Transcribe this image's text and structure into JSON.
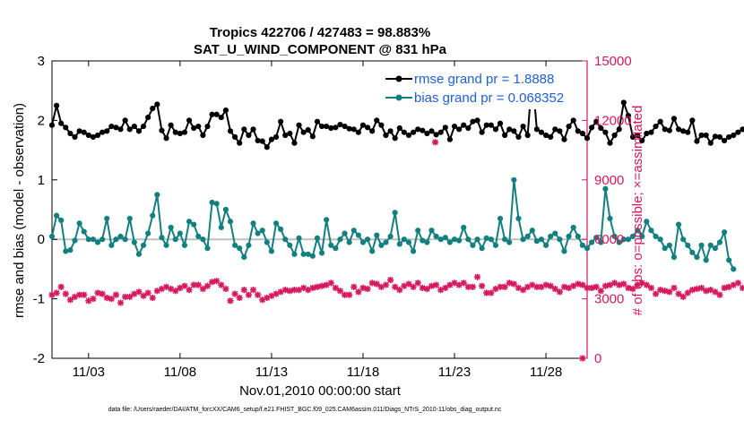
{
  "chart_data": {
    "type": "line",
    "title_line1": "Tropics 422706 / 427483 = 98.883%",
    "title_line2": "SAT_U_WIND_COMPONENT @ 831 hPa",
    "xlabel": "Nov.01,2010 00:00:00 start",
    "ylabel_left": "rmse and bias (model - observation)",
    "ylabel_right": "# of obs: o=possible; ×=assimilated",
    "footer": "data file: /Users/raeder/DAI/ATM_forcXX/CAM6_setup/f.e21.FHIST_BGC.f09_025.CAM6assim.011/Diags_NTrS_2010-11/obs_diag_output.nc",
    "x_tick_labels": [
      "11/03",
      "11/08",
      "11/13",
      "11/18",
      "11/23",
      "11/28"
    ],
    "x_tick_days": [
      3,
      8,
      13,
      18,
      23,
      28
    ],
    "xlim_days": [
      1.0,
      30.25
    ],
    "y_left_ticks": [
      "3",
      "2",
      "1",
      "0",
      "-1",
      "-2"
    ],
    "y_left_tick_values": [
      3,
      2,
      1,
      0,
      -1,
      -2
    ],
    "ylim_left": [
      -2,
      3
    ],
    "y_right_ticks": [
      "15000",
      "12000",
      "9000",
      "6000",
      "3000",
      "0"
    ],
    "y_right_tick_values": [
      15000,
      12000,
      9000,
      6000,
      3000,
      0
    ],
    "ylim_right": [
      0,
      15000
    ],
    "colors": {
      "rmse": "#000000",
      "bias": "#138080",
      "obs": "#d6185e",
      "zero_line": "#bfbfbf",
      "legend_text": "#1f5fd6"
    },
    "legend": [
      {
        "name": "rmse grand pr = 1.8888"
      },
      {
        "name": "bias grand pr = 0.068352"
      }
    ],
    "x_start_day": 1.0,
    "x_step_days": 0.25,
    "series": [
      {
        "name": "rmse",
        "values": [
          1.92,
          2.25,
          1.95,
          1.88,
          1.78,
          1.72,
          1.82,
          1.8,
          1.75,
          1.72,
          1.75,
          1.8,
          1.82,
          1.9,
          1.88,
          1.85,
          2.0,
          1.85,
          1.9,
          1.82,
          1.9,
          2.05,
          2.2,
          2.27,
          1.83,
          1.7,
          1.92,
          1.8,
          1.78,
          1.8,
          2.0,
          1.87,
          1.9,
          1.75,
          1.9,
          2.1,
          2.1,
          2.05,
          2.17,
          1.82,
          1.72,
          1.62,
          1.85,
          1.75,
          1.85,
          1.66,
          1.65,
          1.55,
          1.68,
          1.72,
          1.98,
          1.75,
          1.78,
          1.62,
          1.92,
          1.8,
          1.84,
          1.73,
          1.98,
          1.9,
          1.9,
          1.87,
          1.88,
          1.93,
          1.9,
          1.86,
          1.85,
          1.8,
          1.92,
          1.88,
          1.82,
          2.0,
          1.92,
          1.75,
          1.82,
          1.7,
          1.87,
          1.8,
          1.75,
          1.8,
          1.85,
          1.83,
          1.78,
          1.82,
          1.76,
          1.8,
          1.88,
          1.68,
          1.9,
          1.85,
          1.92,
          1.87,
          1.98,
          2.0,
          1.8,
          1.92,
          1.92,
          1.85,
          1.95,
          1.75,
          1.85,
          1.82,
          1.72,
          1.9,
          1.75,
          2.75,
          1.85,
          1.8,
          1.75,
          1.72,
          1.85,
          1.82,
          1.68,
          1.9,
          2.0,
          1.82,
          1.78,
          1.7,
          1.88,
          1.98,
          1.87,
          1.8,
          1.62,
          1.75,
          1.85,
          2.3,
          2.08,
          1.72,
          1.75,
          1.66,
          1.78,
          1.8,
          1.9,
          1.98,
          1.85,
          1.83,
          2.03,
          1.85,
          1.82,
          1.8,
          2.0,
          1.65,
          1.75,
          1.75,
          1.62,
          1.73,
          1.72,
          1.66,
          1.72,
          1.75,
          1.8,
          1.85
        ]
      },
      {
        "name": "bias",
        "values": [
          0.05,
          0.4,
          0.32,
          -0.2,
          -0.18,
          -0.02,
          0.27,
          0.13,
          0.0,
          0.0,
          -0.05,
          0.0,
          0.35,
          -0.1,
          0.0,
          0.05,
          0.0,
          0.35,
          -0.05,
          -0.25,
          -0.1,
          0.1,
          0.4,
          0.75,
          0.03,
          -0.1,
          0.2,
          0.0,
          0.1,
          -0.1,
          0.3,
          0.25,
          0.05,
          0.0,
          -0.15,
          0.62,
          0.6,
          0.2,
          0.5,
          0.3,
          -0.1,
          -0.15,
          -0.3,
          -0.1,
          0.27,
          0.1,
          0.15,
          -0.05,
          -0.2,
          0.27,
          0.17,
          0.0,
          -0.1,
          -0.25,
          0.02,
          -0.25,
          -0.25,
          -0.28,
          0.02,
          -0.23,
          0.33,
          -0.1,
          -0.15,
          0.0,
          0.1,
          -0.05,
          0.15,
          0.07,
          -0.05,
          0.0,
          -0.2,
          0.07,
          -0.1,
          -0.05,
          0.05,
          0.45,
          -0.08,
          0.0,
          -0.05,
          -0.2,
          0.15,
          -0.02,
          -0.05,
          0.15,
          0.05,
          0.0,
          0.03,
          -0.05,
          0.0,
          -0.02,
          0.2,
          0.0,
          -0.1,
          0.0,
          -0.15,
          0.02,
          0.0,
          -0.1,
          0.35,
          0.0,
          -0.05,
          1.0,
          0.35,
          0.0,
          0.05,
          0.15,
          -0.03,
          0.0,
          -0.1,
          0.05,
          0.1,
          0.0,
          -0.2,
          0.05,
          0.2,
          0.05,
          -0.1,
          -0.15,
          -0.05,
          0.03,
          -0.05,
          0.85,
          0.35,
          0.05,
          -0.05,
          0.0,
          0.0,
          0.05,
          0.15,
          0.05,
          0.3,
          0.15,
          0.05,
          0.0,
          -0.15,
          -0.1,
          -0.3,
          0.25,
          0.0,
          -0.1,
          -0.22,
          -0.3,
          -0.1,
          -0.35,
          -0.1,
          -0.15,
          -0.05,
          0.12,
          -0.35,
          -0.5
        ]
      },
      {
        "name": "obs_assimilated",
        "values": [
          3200,
          3300,
          3600,
          3250,
          2950,
          3100,
          3200,
          3200,
          2900,
          3000,
          3300,
          3250,
          3050,
          3000,
          3200,
          2800,
          3100,
          3100,
          3250,
          3350,
          3150,
          3300,
          3050,
          3400,
          3500,
          3600,
          3500,
          3400,
          3550,
          3650,
          3450,
          3700,
          3700,
          3500,
          3650,
          3850,
          3900,
          3700,
          3500,
          2900,
          3250,
          3050,
          3450,
          3200,
          3450,
          3200,
          2950,
          3050,
          3150,
          3250,
          3350,
          3450,
          3400,
          3450,
          3450,
          3550,
          3450,
          3550,
          3600,
          3650,
          3700,
          3800,
          3550,
          3400,
          3200,
          3200,
          3600,
          3350,
          3550,
          3500,
          3800,
          3750,
          3600,
          3700,
          3950,
          3600,
          3450,
          3650,
          3750,
          3600,
          3800,
          3550,
          3500,
          3650,
          3700,
          3450,
          3550,
          3700,
          3800,
          3700,
          3800,
          3600,
          3600,
          4100,
          3650,
          3300,
          3300,
          3500,
          3600,
          3600,
          3800,
          3750,
          3550,
          3450,
          3600,
          3700,
          3600,
          3600,
          3700,
          3650,
          3500,
          3350,
          3600,
          3550,
          3650,
          3750,
          3700,
          3550,
          3550,
          3600,
          3400,
          3650,
          3700,
          3800,
          3700,
          3750,
          3550,
          3500,
          3700,
          3800,
          3700,
          3550,
          3250,
          3450,
          3400,
          3350,
          3550,
          3250,
          3100,
          3300,
          3450,
          3500,
          3550,
          3400,
          3450,
          3350,
          3200,
          3550,
          3600,
          3700,
          3800,
          3550
        ]
      }
    ],
    "extra_markers": [
      {
        "series": "obs_assimilated",
        "day": 21.95,
        "value": 10900
      },
      {
        "series": "obs_assimilated",
        "day": 30.0,
        "value": 0
      }
    ]
  }
}
